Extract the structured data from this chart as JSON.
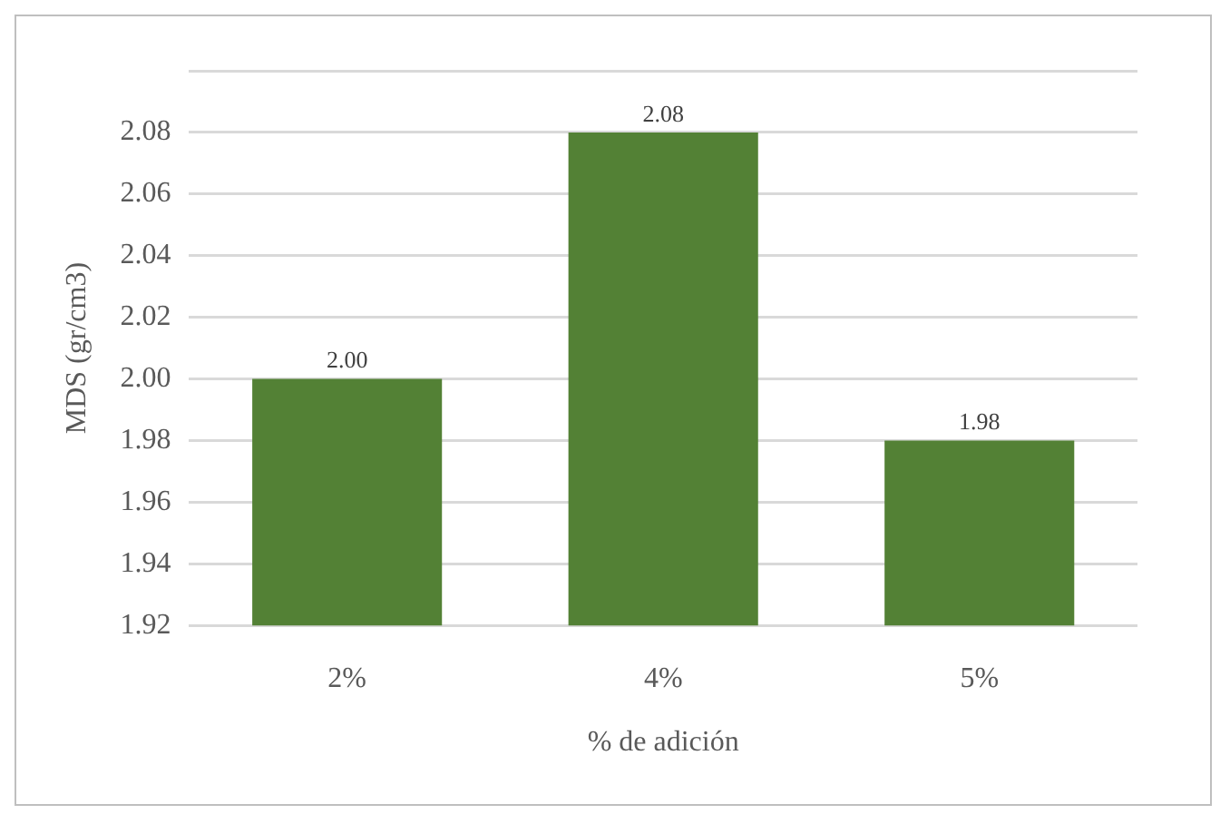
{
  "chart_data": {
    "type": "bar",
    "xlabel": "% de adición",
    "ylabel": "MDS (gr/cm3)",
    "categories": [
      "2%",
      "4%",
      "5%"
    ],
    "values": [
      2.0,
      2.08,
      1.98
    ],
    "value_labels": [
      "2.00",
      "2.08",
      "1.98"
    ],
    "color": "#538135",
    "ylim": [
      1.92,
      2.1
    ],
    "yticks": [
      {
        "value": 1.92,
        "label": "1.92"
      },
      {
        "value": 1.94,
        "label": "1.94"
      },
      {
        "value": 1.96,
        "label": "1.96"
      },
      {
        "value": 1.98,
        "label": "1.98"
      },
      {
        "value": 2,
        "label": "2.00"
      },
      {
        "value": 2.02,
        "label": "2.02"
      },
      {
        "value": 2.04,
        "label": "2.04"
      },
      {
        "value": 2.06,
        "label": "2.06"
      },
      {
        "value": 2.08,
        "label": "2.08"
      },
      {
        "value": 2.1,
        "label": null
      }
    ],
    "grid": "y",
    "legend": false
  }
}
